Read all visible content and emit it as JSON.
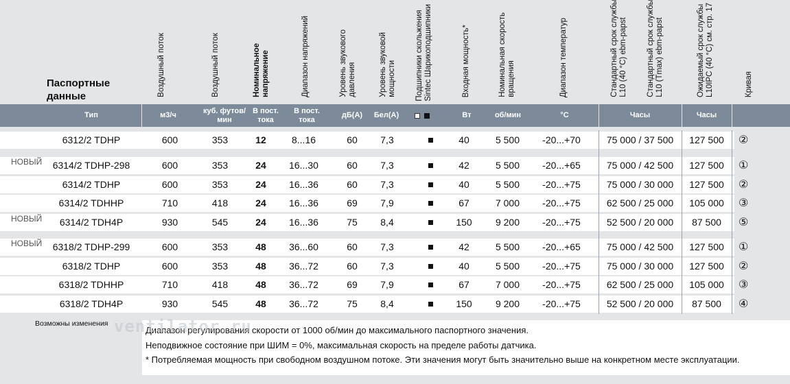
{
  "title": "Паспортные данные",
  "headers": {
    "air_flow": "Воздушный поток",
    "air_flow_cfm": "Воздушный поток",
    "nominal_voltage": "Номинальное\nнапряжение",
    "voltage_range": "Диапазон напряжений",
    "sound_pressure": "Уровень звукового\nдавления",
    "sound_power": "Уровень звуковой\nмощности",
    "bearing": "Подшипники скольжения\nSintec Шарикоподшипники",
    "input_power": "Входная мощность*",
    "nominal_speed": "Номинальная скорость\nвращения",
    "temp_range": "Диапазон температур",
    "service_life": "Стандартный срок службы\nL10 (40 °C) ebm-papst",
    "service_life2": "Стандартный срок службы\nL10 (Tmax) ebm-papst",
    "expected_life": "Ожидаемый срок службы\nL10IPC (40 °C) см. стр. 17",
    "curve": "Кривая"
  },
  "units": {
    "type": "Тип",
    "m3h": "м3/ч",
    "cfm": "куб. футов/\nмин",
    "vdc1": "В пост.\nтока",
    "vdc2": "В пост.\nтока",
    "dba": "дБ(А)",
    "bela": "Бел(А)",
    "w": "Вт",
    "rpm": "об/мин",
    "c": "°C",
    "hours1": "Часы",
    "hours2": "Часы"
  },
  "rows": [
    {
      "new": "",
      "type": "6312/2 TDHP",
      "m3h": "600",
      "cfm": "353",
      "v": "12",
      "vr": "8...16",
      "db": "60",
      "bel": "7,3",
      "w": "40",
      "rpm": "5 500",
      "t": "-20...+70",
      "life": "75 000 / 37 500",
      "ipc": "127 500",
      "curve": "②"
    },
    {
      "new": "НОВЫЙ",
      "type": "6314/2 TDHP-298",
      "m3h": "600",
      "cfm": "353",
      "v": "24",
      "vr": "16...30",
      "db": "60",
      "bel": "7,3",
      "w": "42",
      "rpm": "5 500",
      "t": "-20...+65",
      "life": "75 000 / 42 500",
      "ipc": "127 500",
      "curve": "①"
    },
    {
      "new": "",
      "type": "6314/2 TDHP",
      "m3h": "600",
      "cfm": "353",
      "v": "24",
      "vr": "16...36",
      "db": "60",
      "bel": "7,3",
      "w": "40",
      "rpm": "5 500",
      "t": "-20...+75",
      "life": "75 000 / 30 000",
      "ipc": "127 500",
      "curve": "②"
    },
    {
      "new": "",
      "type": "6314/2 TDHHP",
      "m3h": "710",
      "cfm": "418",
      "v": "24",
      "vr": "16...36",
      "db": "69",
      "bel": "7,9",
      "w": "67",
      "rpm": "7 000",
      "t": "-20...+75",
      "life": "62 500 / 25 000",
      "ipc": "105 000",
      "curve": "③"
    },
    {
      "new": "НОВЫЙ",
      "type": "6314/2 TDH4P",
      "m3h": "930",
      "cfm": "545",
      "v": "24",
      "vr": "16...36",
      "db": "75",
      "bel": "8,4",
      "w": "150",
      "rpm": "9 200",
      "t": "-20...+75",
      "life": "52 500 / 20 000",
      "ipc": "87 500",
      "curve": "⑤"
    },
    {
      "new": "НОВЫЙ",
      "type": "6318/2 TDHP-299",
      "m3h": "600",
      "cfm": "353",
      "v": "48",
      "vr": "36...60",
      "db": "60",
      "bel": "7,3",
      "w": "42",
      "rpm": "5 500",
      "t": "-20...+65",
      "life": "75 000 / 42 500",
      "ipc": "127 500",
      "curve": "①"
    },
    {
      "new": "",
      "type": "6318/2 TDHP",
      "m3h": "600",
      "cfm": "353",
      "v": "48",
      "vr": "36...72",
      "db": "60",
      "bel": "7,3",
      "w": "40",
      "rpm": "5 500",
      "t": "-20...+75",
      "life": "75 000 / 30 000",
      "ipc": "127 500",
      "curve": "②"
    },
    {
      "new": "",
      "type": "6318/2 TDHHP",
      "m3h": "710",
      "cfm": "418",
      "v": "48",
      "vr": "36...72",
      "db": "69",
      "bel": "7,9",
      "w": "67",
      "rpm": "7 000",
      "t": "-20...+75",
      "life": "62 500 / 25 000",
      "ipc": "105 000",
      "curve": "③"
    },
    {
      "new": "",
      "type": "6318/2 TDH4P",
      "m3h": "930",
      "cfm": "545",
      "v": "48",
      "vr": "36...72",
      "db": "75",
      "bel": "8,4",
      "w": "150",
      "rpm": "9 200",
      "t": "-20...+75",
      "life": "52 500 / 20 000",
      "ipc": "87 500",
      "curve": "④"
    }
  ],
  "footer": {
    "changes": "Возможны изменения",
    "watermark": "ventilator.ru",
    "notes": [
      "Диапазон регулирования скорости от 1000 об/мин до максимального паспортного значения.",
      "Неподвижное состояние при ШИМ = 0%, максимальная скорость на пределе работы датчика.",
      "* Потребляемая мощность при свободном воздушном потоке. Эти значения могут быть значительно выше на конкретном месте эксплуатации."
    ]
  },
  "colors": {
    "band": "#7c8a99",
    "page": "#e4e5e7",
    "row": "#ffffff"
  }
}
